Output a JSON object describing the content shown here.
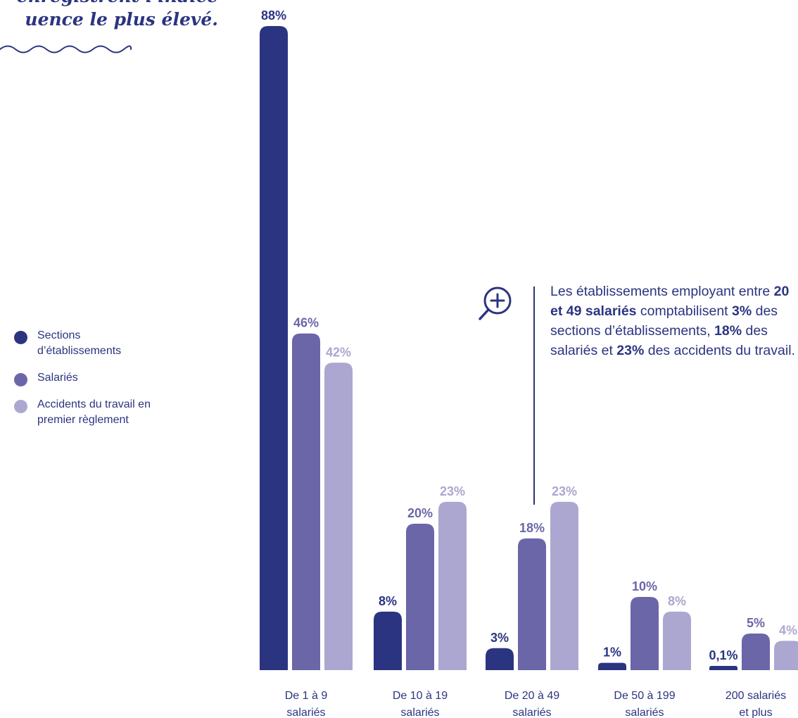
{
  "title": {
    "line1": "enregistrent l'indice",
    "line2": "uence le plus élevé."
  },
  "legend": [
    {
      "label": "Sections d’établissements",
      "color": "#2b3480"
    },
    {
      "label": "Salariés",
      "color": "#6a66a8"
    },
    {
      "label": "Accidents du travail en premier règlement",
      "color": "#aba7d0"
    }
  ],
  "callout": {
    "t1": "Les établissements employant entre ",
    "b1": "20 et 49 salariés",
    "t2": " comptabilisent ",
    "b2": "3%",
    "t3": " des sections d’établissements, ",
    "b3": "18%",
    "t4": " des salariés et ",
    "b4": "23%",
    "t5": " des accidents du travail.",
    "icon": "zoom-in-icon"
  },
  "chart_data": {
    "type": "bar",
    "categories": [
      [
        "De 1 à 9",
        "salariés"
      ],
      [
        "De 10 à 19",
        "salariés"
      ],
      [
        "De 20 à 49",
        "salariés"
      ],
      [
        "De 50 à 199",
        "salariés"
      ],
      [
        "200 salariés",
        "et plus"
      ]
    ],
    "series": [
      {
        "name": "Sections d’établissements",
        "values": [
          88,
          8,
          3,
          1,
          0.1
        ],
        "labels": [
          "88%",
          "8%",
          "3%",
          "1%",
          "0,1%"
        ],
        "color": "#2b3480"
      },
      {
        "name": "Salariés",
        "values": [
          46,
          20,
          18,
          10,
          5
        ],
        "labels": [
          "46%",
          "20%",
          "18%",
          "10%",
          "5%"
        ],
        "color": "#6a66a8"
      },
      {
        "name": "Accidents du travail en premier règlement",
        "values": [
          42,
          23,
          23,
          8,
          4
        ],
        "labels": [
          "42%",
          "23%",
          "23%",
          "8%",
          "4%"
        ],
        "color": "#aba7d0"
      }
    ],
    "ylim": [
      0,
      88
    ]
  }
}
